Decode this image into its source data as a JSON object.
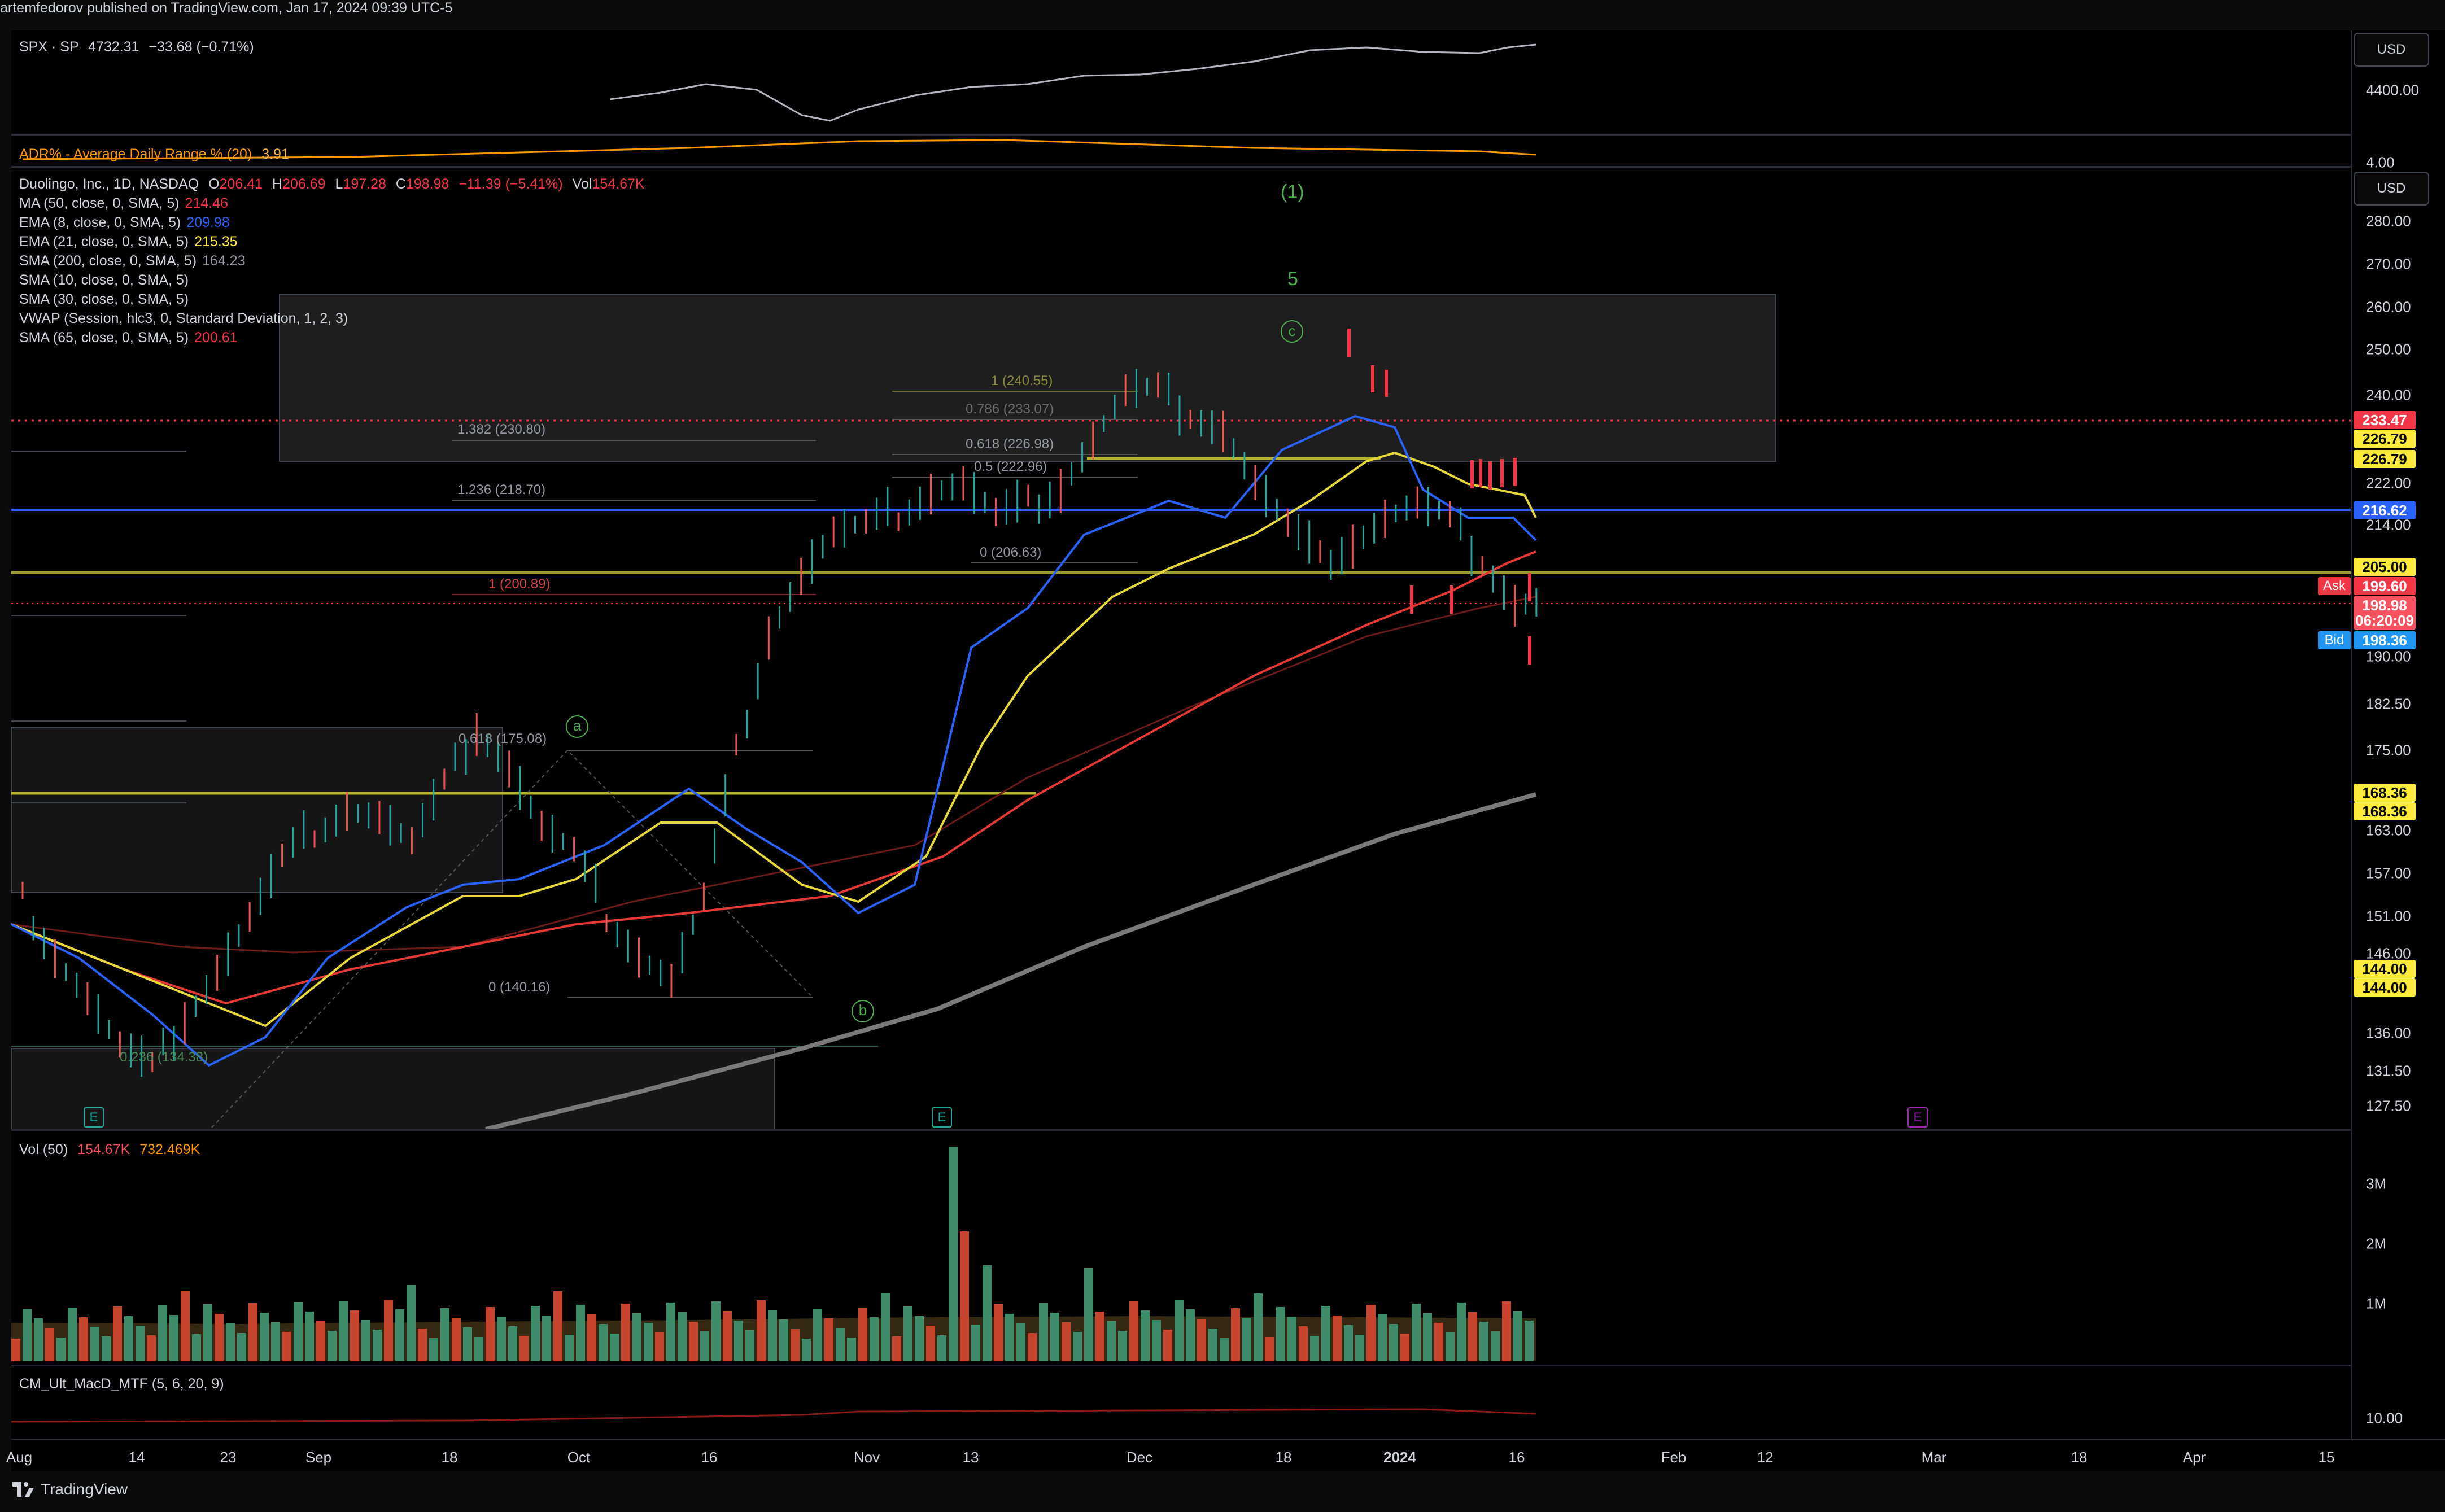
{
  "header": {
    "text": "artemfedorov published on TradingView.com, Jan 17, 2024 09:39 UTC-5"
  },
  "spx": {
    "symbol": "SPX · SP",
    "last": "4732.31",
    "change": "−33.68 (−0.71%)",
    "adr_label": "ADR% - Average Daily Range % (20)",
    "adr_value": "3.91",
    "currency": "USD",
    "tick_top": "4400.00",
    "tick_bottom": "4.00"
  },
  "main": {
    "title": "Duolingo, Inc., 1D, NASDAQ",
    "o_label": "O",
    "o": "206.41",
    "h_label": "H",
    "h": "206.69",
    "l_label": "L",
    "l": "197.28",
    "c_label": "C",
    "c": "198.98",
    "chg": "−11.39 (−5.41%)",
    "vol_label": "Vol",
    "vol": "154.67K",
    "indicators": [
      {
        "name": "MA (50, close, 0, SMA, 5)",
        "value": "214.46",
        "color": "#f23645"
      },
      {
        "name": "EMA (8, close, 0, SMA, 5)",
        "value": "209.98",
        "color": "#2962ff"
      },
      {
        "name": "EMA (21, close, 0, SMA, 5)",
        "value": "215.35",
        "color": "#ffeb3b"
      },
      {
        "name": "SMA (200, close, 0, SMA, 5)",
        "value": "164.23",
        "color": "#9598a1"
      },
      {
        "name": "SMA (10, close, 0, SMA, 5)",
        "value": "",
        "color": "#d1d4dc"
      },
      {
        "name": "SMA (30, close, 0, SMA, 5)",
        "value": "",
        "color": "#d1d4dc"
      },
      {
        "name": "VWAP (Session, hlc3, 0, Standard Deviation, 1, 2, 3)",
        "value": "",
        "color": "#d1d4dc"
      },
      {
        "name": "SMA (65, close, 0, SMA, 5)",
        "value": "200.61",
        "color": "#f23645"
      }
    ],
    "currency": "USD",
    "price_ticks": [
      "280.00",
      "270.00",
      "260.00",
      "250.00",
      "240.00",
      "222.00",
      "214.00",
      "190.00",
      "182.50",
      "175.00",
      "163.00",
      "157.00",
      "151.00",
      "146.00",
      "136.00",
      "131.50",
      "127.50"
    ],
    "price_labels": [
      {
        "text": "233.47",
        "bg": "#f23645",
        "fg": "#ffffff"
      },
      {
        "text": "226.79",
        "bg": "#ffeb3b",
        "fg": "#000000"
      },
      {
        "text": "226.79",
        "bg": "#ffeb3b",
        "fg": "#000000"
      },
      {
        "text": "216.62",
        "bg": "#2962ff",
        "fg": "#ffffff"
      },
      {
        "text": "205.00",
        "bg": "#ffeb3b",
        "fg": "#000000"
      },
      {
        "text": "199.60",
        "bg": "#f23645",
        "fg": "#ffffff"
      },
      {
        "text": "198.98",
        "bg": "#f7525f",
        "fg": "#ffffff"
      },
      {
        "text": "06:20:09",
        "bg": "#f7525f",
        "fg": "#ffffff"
      },
      {
        "text": "198.36",
        "bg": "#2196f3",
        "fg": "#ffffff"
      },
      {
        "text": "168.36",
        "bg": "#ffeb3b",
        "fg": "#000000"
      },
      {
        "text": "168.36",
        "bg": "#ffeb3b",
        "fg": "#000000"
      },
      {
        "text": "144.00",
        "bg": "#ffeb3b",
        "fg": "#000000"
      },
      {
        "text": "144.00",
        "bg": "#ffeb3b",
        "fg": "#000000"
      }
    ],
    "ask_label": "Ask",
    "bid_label": "Bid",
    "fib_labels": [
      "1 (240.55)",
      "0.786 (233.07)",
      "0.618 (226.98)",
      "0.5 (222.96)",
      "0 (206.63)",
      "1.382 (230.80)",
      "1.236 (218.70)",
      "1 (200.89)",
      "0.618 (175.08)",
      "0 (140.16)",
      "0.236 (134.38)"
    ],
    "wave_labels": [
      "(1)",
      "5",
      "c",
      "a",
      "b"
    ],
    "earnings_marks": [
      "E",
      "E",
      "E"
    ]
  },
  "volume": {
    "label": "Vol (50)",
    "value1": "154.67K",
    "value2": "732.469K",
    "ticks": [
      "3M",
      "2M",
      "1M"
    ]
  },
  "macd": {
    "label": "CM_Ult_MacD_MTF (5, 6, 20, 9)",
    "tick": "10.00"
  },
  "time_axis": [
    "Aug",
    "14",
    "23",
    "Sep",
    "18",
    "Oct",
    "16",
    "Nov",
    "13",
    "Dec",
    "18",
    "2024",
    "16",
    "Feb",
    "12",
    "Mar",
    "18",
    "Apr",
    "15"
  ],
  "footer": {
    "brand": "TradingView"
  }
}
